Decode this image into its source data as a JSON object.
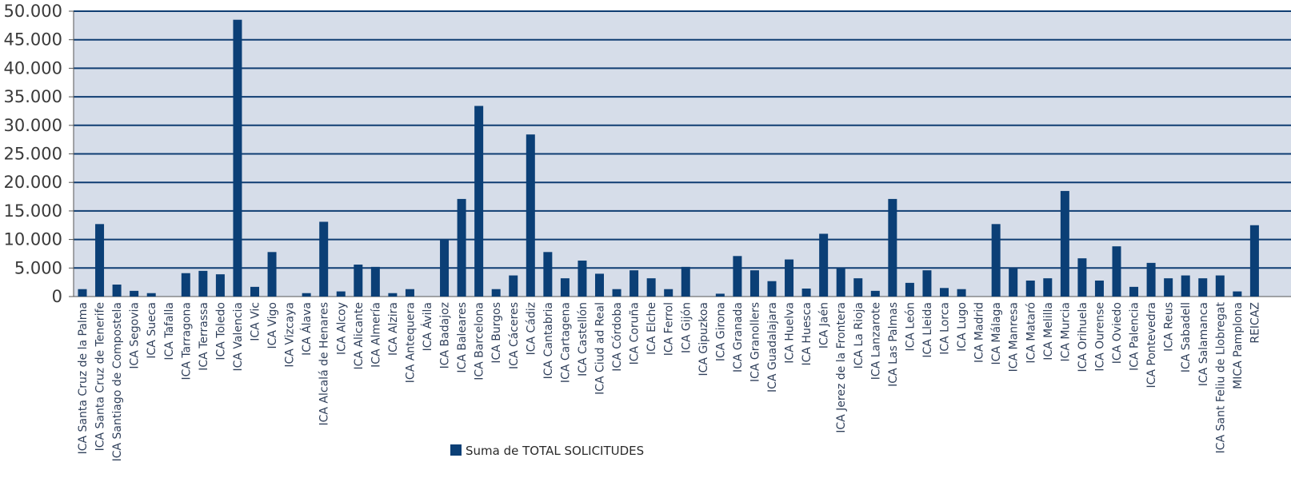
{
  "colors": {
    "plot_bg": "#d6dde9",
    "grid": "#0f3d72",
    "bar": "#0b3f76",
    "axis": "#555555"
  },
  "chart_data": {
    "type": "bar",
    "ylim": [
      0,
      50000
    ],
    "yticks": [
      0,
      5000,
      10000,
      15000,
      20000,
      25000,
      30000,
      35000,
      40000,
      45000,
      50000
    ],
    "ytick_labels": [
      "0",
      "5.000",
      "10.000",
      "15.000",
      "20.000",
      "25.000",
      "30.000",
      "35.000",
      "40.000",
      "45.000",
      "50.000"
    ],
    "grid": true,
    "legend_position": "bottom",
    "categories": [
      "ICA Santa Cruz de la Palma",
      "ICA Santa Cruz de Tenerife",
      "ICA Santiago de Compostela",
      "ICA Segovia",
      "ICA Sueca",
      "ICA Tafalla",
      "ICA Tarragona",
      "ICA Terrassa",
      "ICA Toledo",
      "ICA Valencia",
      "ICA Vic",
      "ICA Vigo",
      "ICA Vizcaya",
      "ICA Álava",
      "ICA Alcalá de Henares",
      "ICA Alcoy",
      "ICA Alicante",
      "ICA Almería",
      "ICA Alzira",
      "ICA Antequera",
      "ICA Ávila",
      "ICA Badajoz",
      "ICA Baleares",
      "ICA Barcelona",
      "ICA Burgos",
      "ICA Cáceres",
      "ICA Cádiz",
      "ICA Cantabria",
      "ICA Cartagena",
      "ICA Castellón",
      "ICA Ciud ad Real",
      "ICA Córdoba",
      "ICA Coruña",
      "ICA Elche",
      "ICA Ferrol",
      "ICA Gijón",
      "ICA Gipuzkoa",
      "ICA Girona",
      "ICA Granada",
      "ICA Granollers",
      "ICA Guadalajara",
      "ICA Huelva",
      "ICA Huesca",
      "ICA Jaén",
      "ICA Jerez de la Frontera",
      "ICA La Rioja",
      "ICA Lanzarote",
      "ICA Las Palmas",
      "ICA León",
      "ICA Lleida",
      "ICA Lorca",
      "ICA Lugo",
      "ICA Madrid",
      "ICA Málaga",
      "ICA Manresa",
      "ICA Mataró",
      "ICA Melilla",
      "ICA Murcia",
      "ICA Orihuela",
      "ICA Ourense",
      "ICA Oviedo",
      "ICA Palencia",
      "ICA Pontevedra",
      "ICA Reus",
      "ICA Sabadell",
      "ICA Salamanca",
      "ICA Sant Feliu de Llobregat",
      "MICA Pamplona",
      "REICAZ"
    ],
    "series": [
      {
        "name": "Suma de TOTAL SOLICITUDES",
        "values": [
          1300,
          12700,
          2100,
          1000,
          600,
          0,
          4100,
          4500,
          3900,
          48500,
          1700,
          7800,
          0,
          600,
          13100,
          900,
          5600,
          5200,
          600,
          1300,
          0,
          10000,
          17100,
          33400,
          1300,
          3700,
          28400,
          7800,
          3200,
          6300,
          4000,
          1300,
          4600,
          3200,
          1300,
          5200,
          0,
          500,
          7100,
          4600,
          2700,
          6500,
          1400,
          11000,
          4900,
          3200,
          1000,
          17100,
          2400,
          4600,
          1500,
          1300,
          0,
          12700,
          4900,
          2800,
          3200,
          18500,
          6700,
          2800,
          8800,
          1700,
          5900,
          3200,
          3700,
          3200,
          3700,
          900,
          12500
        ]
      }
    ]
  }
}
